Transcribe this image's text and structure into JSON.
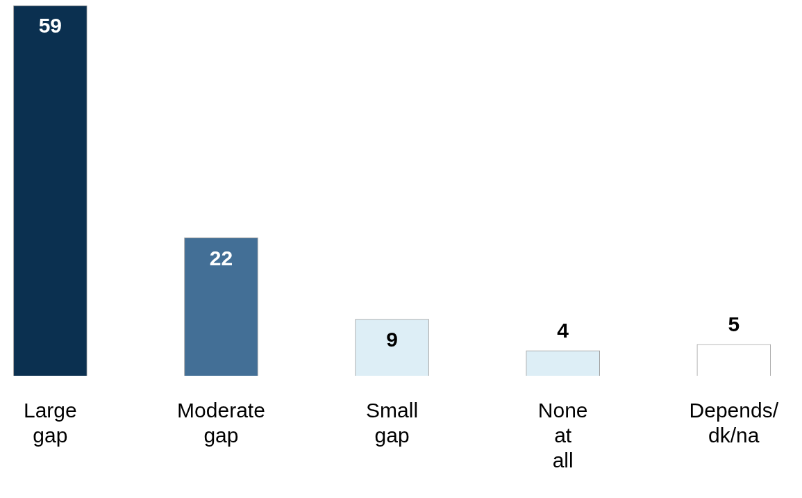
{
  "chart_data": {
    "type": "bar",
    "categories": [
      "Large gap",
      "Moderate gap",
      "Small gap",
      "None at all",
      "Depends/ dk/na"
    ],
    "values": [
      59,
      22,
      9,
      4,
      5
    ],
    "colors": [
      "#0b3050",
      "#436f96",
      "#ddeef6",
      "#ddeef6",
      "#ffffff"
    ],
    "data_labels": true,
    "grid": false,
    "legend": false
  }
}
